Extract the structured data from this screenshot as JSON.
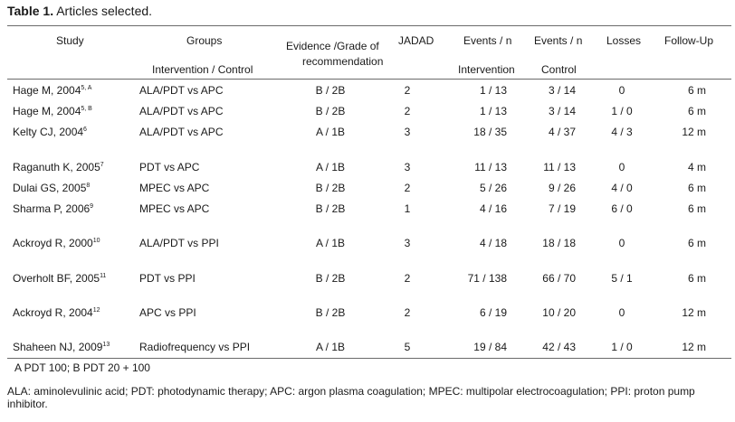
{
  "caption": {
    "label": "Table 1.",
    "text": " Articles selected."
  },
  "headers": {
    "study": "Study",
    "groups": "Groups",
    "groups_sub": "Intervention / Control",
    "evidence_1": "Evidence /Grade of",
    "evidence_2": "recommendation",
    "jadad": "JADAD",
    "events_int": "Events / n",
    "events_int_sub": "Intervention",
    "events_ctl": "Events / n",
    "events_ctl_sub": "Control",
    "losses": "Losses",
    "followup": "Follow-Up"
  },
  "rows": [
    {
      "study": "Hage M, 2004",
      "ref": "5, A",
      "groups": "ALA/PDT vs APC",
      "evidence": "B / 2B",
      "jadad": "2",
      "ev_int": "1 / 13",
      "ev_ctl": "3 / 14",
      "losses": "0",
      "followup": "6 m"
    },
    {
      "study": "Hage M, 2004",
      "ref": "5, B",
      "groups": "ALA/PDT vs APC",
      "evidence": "B / 2B",
      "jadad": "2",
      "ev_int": "1 / 13",
      "ev_ctl": "3 / 14",
      "losses": "1 / 0",
      "followup": "6 m"
    },
    {
      "study": "Kelty CJ, 2004",
      "ref": "6",
      "groups": "ALA/PDT vs APC",
      "evidence": "A / 1B",
      "jadad": "3",
      "ev_int": "18 / 35",
      "ev_ctl": "4 / 37",
      "losses": "4 / 3",
      "followup": "12 m"
    },
    {
      "study": "Raganuth K, 2005",
      "ref": "7",
      "groups": "PDT vs APC",
      "evidence": "A / 1B",
      "jadad": "3",
      "ev_int": "11 / 13",
      "ev_ctl": "11 / 13",
      "losses": "0",
      "followup": "4 m"
    },
    {
      "study": "Dulai GS, 2005",
      "ref": "8",
      "groups": "MPEC vs APC",
      "evidence": "B / 2B",
      "jadad": "2",
      "ev_int": "5 / 26",
      "ev_ctl": "9 / 26",
      "losses": "4 / 0",
      "followup": "6 m"
    },
    {
      "study": "Sharma P, 2006",
      "ref": "9",
      "groups": "MPEC vs APC",
      "evidence": "B / 2B",
      "jadad": "1",
      "ev_int": "4 / 16",
      "ev_ctl": "7 / 19",
      "losses": "6 / 0",
      "followup": "6 m"
    },
    {
      "study": "Ackroyd R, 2000",
      "ref": "10",
      "groups": "ALA/PDT vs PPI",
      "evidence": "A / 1B",
      "jadad": "3",
      "ev_int": "4 / 18",
      "ev_ctl": "18 / 18",
      "losses": "0",
      "followup": "6 m"
    },
    {
      "study": "Overholt BF, 2005",
      "ref": "11",
      "groups": "PDT vs PPI",
      "evidence": "B / 2B",
      "jadad": "2",
      "ev_int": "71 / 138",
      "ev_ctl": "66 / 70",
      "losses": "5 / 1",
      "followup": "6 m"
    },
    {
      "study": "Ackroyd R, 2004",
      "ref": "12",
      "groups": "APC vs PPI",
      "evidence": "B / 2B",
      "jadad": "2",
      "ev_int": "6 / 19",
      "ev_ctl": "10 / 20",
      "losses": "0",
      "followup": "12 m"
    },
    {
      "study": "Shaheen NJ, 2009",
      "ref": "13",
      "groups": "Radiofrequency vs PPI",
      "evidence": "A / 1B",
      "jadad": "5",
      "ev_int": "19 / 84",
      "ev_ctl": "42 / 43",
      "losses": "1 / 0",
      "followup": "12 m"
    }
  ],
  "note": "A PDT 100; B PDT 20 + 100",
  "footer": "ALA: aminolevulinic acid; PDT: photodynamic therapy; APC: argon plasma coagulation; MPEC: multipolar electrocoagulation; PPI: proton pump inhibitor."
}
